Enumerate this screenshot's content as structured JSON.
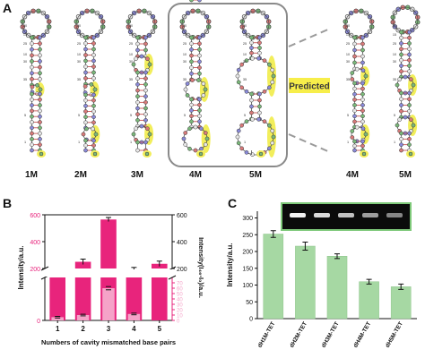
{
  "panels": {
    "a": "A",
    "b": "B",
    "c": "C"
  },
  "panel_a": {
    "labels": [
      "1M",
      "2M",
      "3M",
      "4M",
      "5M",
      "4M",
      "5M"
    ],
    "predicted_label": "Predicted",
    "nt_numbers": [
      "10",
      "15",
      "20",
      "25",
      "30",
      "35",
      "5",
      "1"
    ]
  },
  "colors": {
    "pink_dark": "#e8247c",
    "pink_light": "#f5a3c8",
    "green_bar": "#a6d8a3",
    "highlight_yellow": "#f2ee5b",
    "predicted_box": "#f7ee4a",
    "gel_bg": "#0b0b0b"
  },
  "chart_data": [
    {
      "type": "bar",
      "categories": [
        "1",
        "2",
        "3",
        "4",
        "5"
      ],
      "series": [
        {
          "name": "",
          "values": [
            155,
            250,
            565,
            190,
            235
          ],
          "errors": [
            15,
            20,
            15,
            18,
            20
          ],
          "axis": "left"
        },
        {
          "name": "",
          "values": [
            6,
            10,
            60,
            12,
            0
          ],
          "errors": [
            1.5,
            1.5,
            3,
            1.5,
            0
          ],
          "axis": "right"
        }
      ],
      "xlabel": "Numbers of cavity mismatched base pairs",
      "ylabel": "Intensity/a.u.",
      "y2label": "Intensity(I₄₆-I₀)/a.u.",
      "left_upper_ticks": [
        "200",
        "400",
        "600"
      ],
      "left_lower_ticks": [
        "0"
      ],
      "right_upper_ticks": [
        "200",
        "400",
        "600"
      ],
      "right_lower_ticks": [
        "0",
        "10",
        "20",
        "30",
        "40",
        "50",
        "60",
        "70"
      ],
      "ylim_upper": [
        200,
        600
      ],
      "ylim_lower": [
        0,
        80
      ],
      "axis_break": true
    },
    {
      "type": "bar",
      "categories": [
        "dH1M-TET",
        "dH2M-TET",
        "dH3M-TET",
        "dH4M-TET",
        "dH5M-TET"
      ],
      "values": [
        252,
        216,
        186,
        110,
        95
      ],
      "errors": [
        10,
        12,
        7,
        7,
        8
      ],
      "ylabel": "Intensity/a.u.",
      "yticks": [
        "0",
        "50",
        "100",
        "150",
        "200",
        "250",
        "300"
      ],
      "ylim": [
        0,
        320
      ],
      "inset": "gel-image"
    }
  ]
}
